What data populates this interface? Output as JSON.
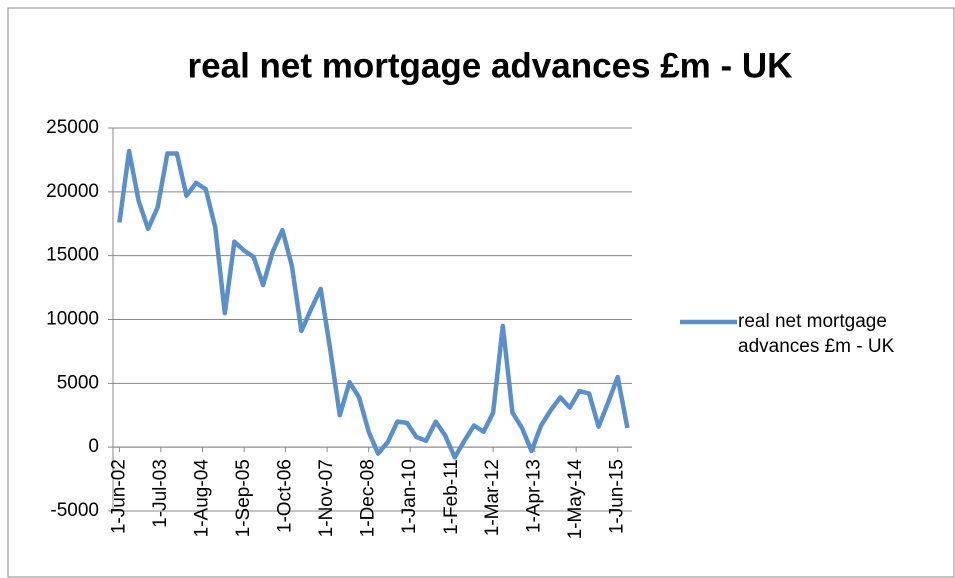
{
  "chart_data": {
    "type": "line",
    "title": "real net mortgage advances £m - UK",
    "x": [
      "2002-06-01",
      "2002-09-01",
      "2002-12-01",
      "2003-03-01",
      "2003-06-01",
      "2003-09-01",
      "2003-12-01",
      "2004-03-01",
      "2004-06-01",
      "2004-09-01",
      "2004-12-01",
      "2005-03-01",
      "2005-06-01",
      "2005-09-01",
      "2005-12-01",
      "2006-03-01",
      "2006-06-01",
      "2006-09-01",
      "2006-12-01",
      "2007-03-01",
      "2007-06-01",
      "2007-09-01",
      "2007-12-01",
      "2008-03-01",
      "2008-06-01",
      "2008-09-01",
      "2008-12-01",
      "2009-03-01",
      "2009-06-01",
      "2009-09-01",
      "2009-12-01",
      "2010-03-01",
      "2010-06-01",
      "2010-09-01",
      "2010-12-01",
      "2011-03-01",
      "2011-06-01",
      "2011-09-01",
      "2011-12-01",
      "2012-03-01",
      "2012-06-01",
      "2012-09-01",
      "2012-12-01",
      "2013-03-01",
      "2013-06-01",
      "2013-09-01",
      "2013-12-01",
      "2014-03-01",
      "2014-06-01",
      "2014-09-01",
      "2014-12-01",
      "2015-03-01",
      "2015-06-01",
      "2015-09-01"
    ],
    "series": [
      {
        "name": "real net mortgage advances £m - UK",
        "color": "#5b8fc9",
        "values": [
          17600,
          23200,
          19300,
          17100,
          18800,
          23000,
          23000,
          19700,
          20700,
          20200,
          17200,
          10500,
          16100,
          15400,
          14900,
          12700,
          15300,
          17000,
          14200,
          9100,
          10800,
          12400,
          7600,
          2500,
          5100,
          3900,
          1200,
          -500,
          400,
          2000,
          1900,
          800,
          500,
          2000,
          900,
          -800,
          500,
          1700,
          1200,
          2700,
          9500,
          2700,
          1500,
          -300,
          1700,
          2900,
          3900,
          3100,
          4400,
          4200,
          1600,
          3500,
          5500,
          1500
        ]
      }
    ],
    "ylim": [
      -5000,
      25000
    ],
    "yticks": [
      -5000,
      0,
      5000,
      10000,
      15000,
      20000,
      25000
    ],
    "xlim": [
      "2002-04-01",
      "2015-10-15"
    ],
    "xticks": [
      {
        "value": "2002-06-01",
        "label": "1-Jun-02"
      },
      {
        "value": "2003-07-01",
        "label": "1-Jul-03"
      },
      {
        "value": "2004-08-01",
        "label": "1-Aug-04"
      },
      {
        "value": "2005-09-01",
        "label": "1-Sep-05"
      },
      {
        "value": "2006-10-01",
        "label": "1-Oct-06"
      },
      {
        "value": "2007-11-01",
        "label": "1-Nov-07"
      },
      {
        "value": "2008-12-01",
        "label": "1-Dec-08"
      },
      {
        "value": "2010-01-01",
        "label": "1-Jan-10"
      },
      {
        "value": "2011-02-01",
        "label": "1-Feb-11"
      },
      {
        "value": "2012-03-01",
        "label": "1-Mar-12"
      },
      {
        "value": "2013-04-01",
        "label": "1-Apr-13"
      },
      {
        "value": "2014-05-01",
        "label": "1-May-14"
      },
      {
        "value": "2015-06-01",
        "label": "1-Jun-15"
      }
    ],
    "grid": true,
    "legend": "right"
  }
}
